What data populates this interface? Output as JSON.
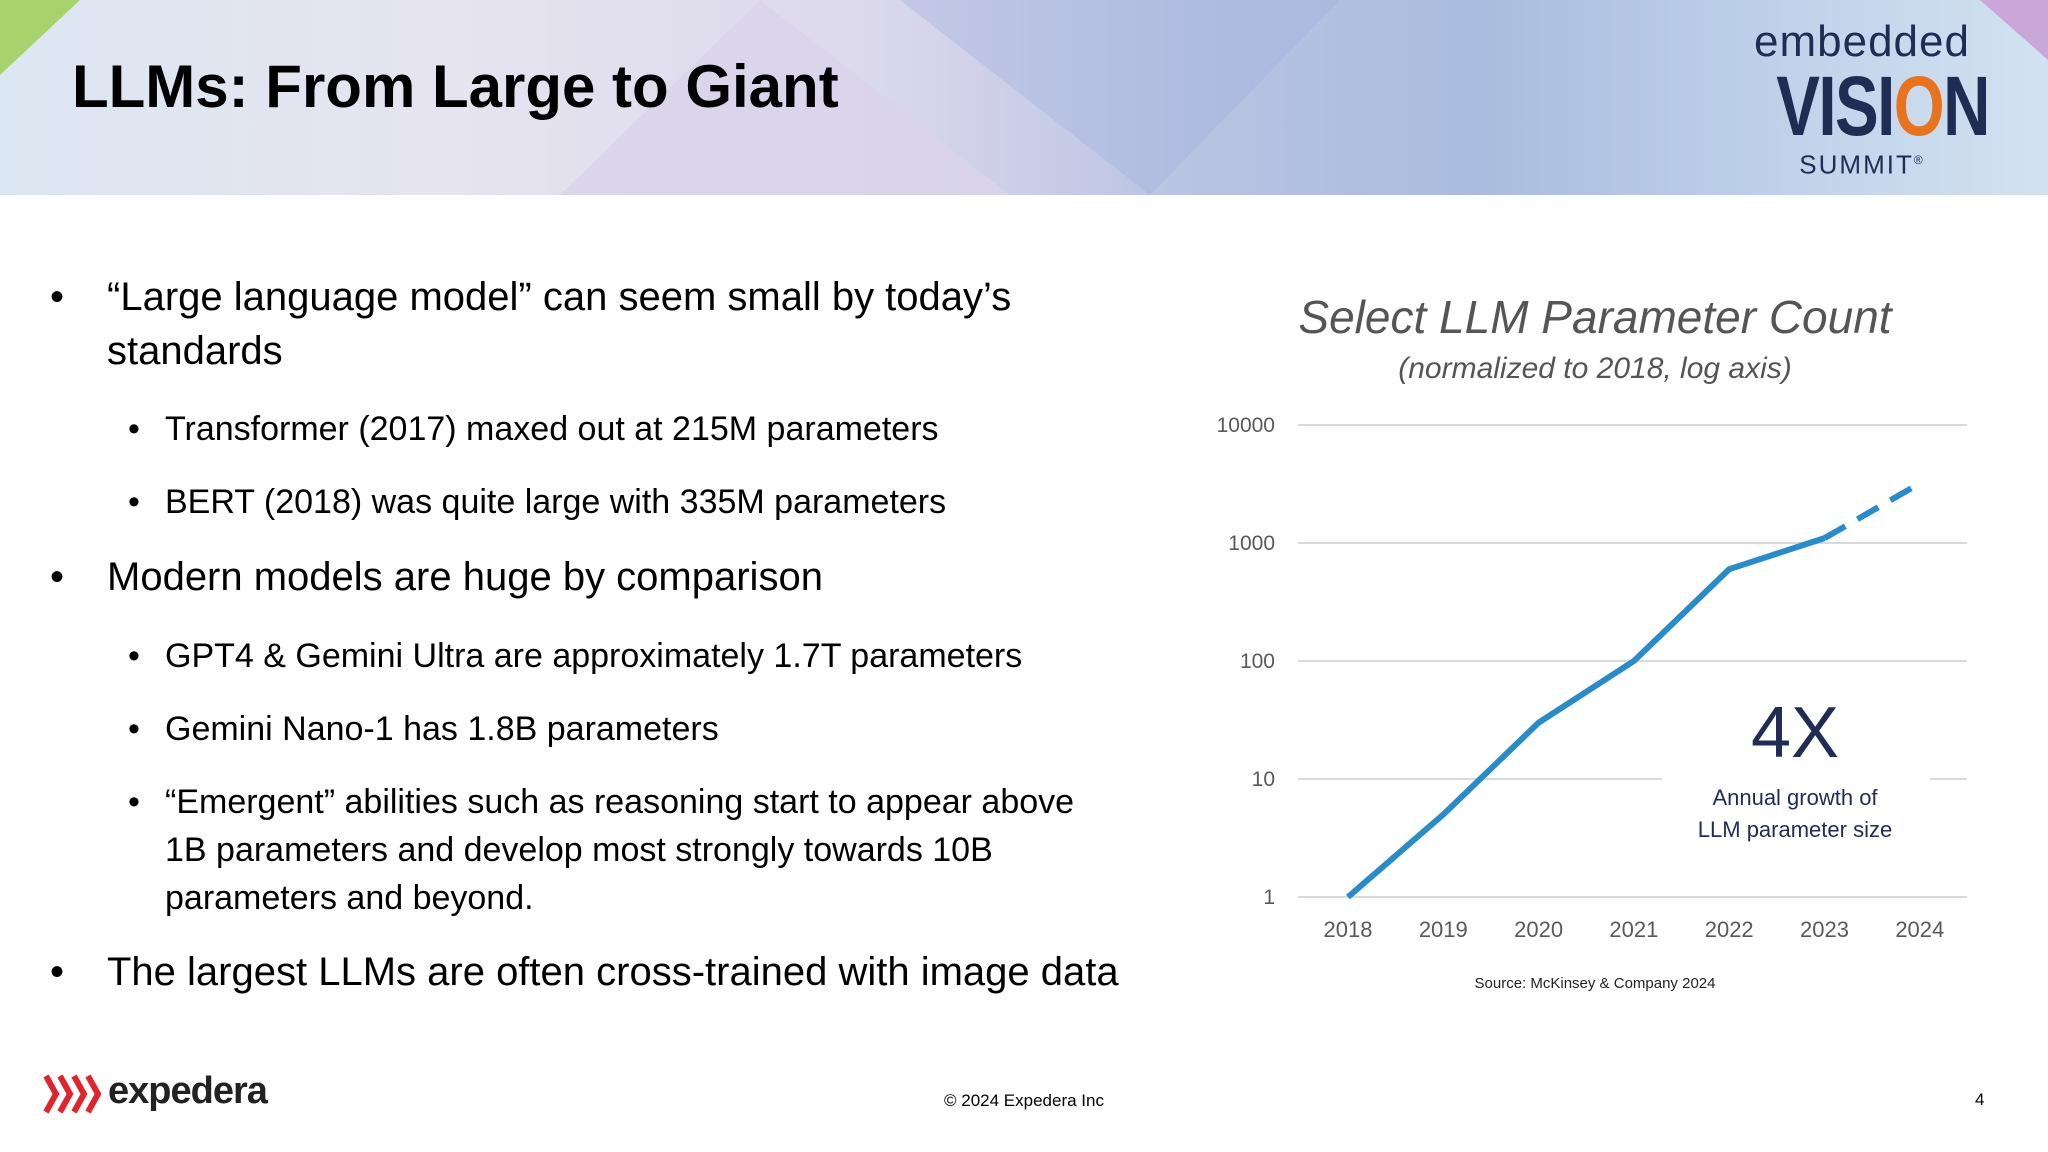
{
  "slide": {
    "title": "LLMs: From Large to Giant",
    "logo": {
      "top": "embedded",
      "middle": "VISION",
      "bottom": "SUMMIT",
      "mark": "®"
    }
  },
  "bullets": [
    {
      "level": 1,
      "lines": [
        "“Large language model” can seem small by today’s",
        "standards"
      ]
    },
    {
      "level": 2,
      "lines": [
        "Transformer (2017) maxed out at 215M parameters"
      ]
    },
    {
      "level": 2,
      "lines": [
        "BERT (2018) was quite large with 335M parameters"
      ]
    },
    {
      "level": 1,
      "lines": [
        "Modern models are huge by comparison"
      ]
    },
    {
      "level": 2,
      "lines": [
        "GPT4 & Gemini Ultra are approximately 1.7T parameters"
      ]
    },
    {
      "level": 2,
      "lines": [
        "Gemini Nano-1 has 1.8B parameters"
      ]
    },
    {
      "level": 2,
      "lines": [
        "“Emergent” abilities such as reasoning start to appear above",
        "1B parameters and develop most strongly towards 10B",
        "parameters and beyond."
      ]
    },
    {
      "level": 1,
      "lines": [
        "The largest LLMs are often cross-trained with image data"
      ]
    }
  ],
  "chart_data": {
    "type": "line",
    "title": "Select LLM Parameter Count",
    "subtitle": "(normalized to 2018, log axis)",
    "x": [
      "2018",
      "2019",
      "2020",
      "2021",
      "2022",
      "2023",
      "2024"
    ],
    "ylim": [
      1,
      10000
    ],
    "yscale": "log",
    "yticks": [
      "1",
      "10",
      "100",
      "1000",
      "10000"
    ],
    "grid": true,
    "line_color": "#2a8bc9",
    "series": [
      {
        "style": "solid",
        "x": [
          "2018",
          "2019",
          "2020",
          "2021",
          "2022",
          "2023"
        ],
        "values": [
          1,
          5,
          30,
          100,
          600,
          1100
        ]
      },
      {
        "style": "dashed",
        "x": [
          "2023",
          "2024"
        ],
        "values": [
          1100,
          3200
        ]
      }
    ],
    "annotation": {
      "value": "4X",
      "label_lines": [
        "Annual growth of",
        "LLM parameter size"
      ]
    },
    "source": "Source: McKinsey & Company 2024"
  },
  "footer": {
    "brand": "expedera",
    "copyright": "© 2024 Expedera Inc",
    "page_number": "4"
  },
  "colors": {
    "title_text": "#000000",
    "logo_navy": "#1f2d55",
    "logo_orange": "#e8731e",
    "brand_red": "#e0242b",
    "accent_green": "#a6d36b"
  }
}
